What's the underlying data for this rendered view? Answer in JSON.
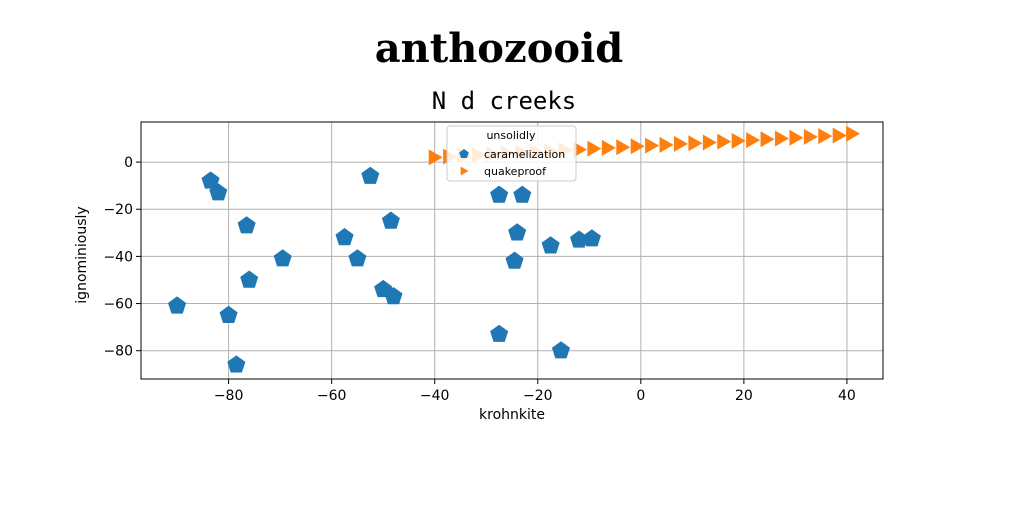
{
  "chart_data": {
    "type": "scatter",
    "suptitle": "anthozooid",
    "title": "N d creeks",
    "xlabel": "krohnkite",
    "ylabel": "ignominiously",
    "xlim": [
      -97,
      47
    ],
    "ylim": [
      -92,
      17
    ],
    "xticks": [
      -80,
      -60,
      -40,
      -20,
      0,
      20,
      40
    ],
    "yticks": [
      0,
      -20,
      -40,
      -60,
      -80
    ],
    "grid": true,
    "legend": {
      "placement": "upper-center",
      "title": "unsolidly",
      "entries": [
        "caramelization",
        "quakeproof"
      ]
    },
    "colors": {
      "caramelization": "#1f77b4",
      "quakeproof": "#ff7f0e"
    },
    "series": [
      {
        "name": "caramelization",
        "marker": "pentagon",
        "points": [
          [
            -90,
            -61
          ],
          [
            -83.5,
            -8
          ],
          [
            -82,
            -13
          ],
          [
            -80,
            -65
          ],
          [
            -78.5,
            -86
          ],
          [
            -76.5,
            -27
          ],
          [
            -76,
            -50
          ],
          [
            -69.5,
            -41
          ],
          [
            -57.5,
            -32
          ],
          [
            -55,
            -41
          ],
          [
            -52.5,
            -6
          ],
          [
            -50,
            -54
          ],
          [
            -48.5,
            -25
          ],
          [
            -48,
            -57
          ],
          [
            -27.5,
            -14
          ],
          [
            -27.5,
            -73
          ],
          [
            -24.5,
            -42
          ],
          [
            -24,
            -30
          ],
          [
            -23,
            -14
          ],
          [
            -17.5,
            -35.5
          ],
          [
            -15.5,
            -80
          ],
          [
            -12,
            -33
          ],
          [
            -9.5,
            -32.5
          ]
        ]
      },
      {
        "name": "quakeproof",
        "marker": "triangle-right",
        "points": [
          [
            -40,
            2
          ],
          [
            -37.2,
            2.3
          ],
          [
            -34.4,
            2.7
          ],
          [
            -31.6,
            3
          ],
          [
            -28.8,
            3.3
          ],
          [
            -26,
            3.7
          ],
          [
            -23.2,
            4
          ],
          [
            -20.4,
            4.3
          ],
          [
            -17.6,
            4.7
          ],
          [
            -14.8,
            5
          ],
          [
            -12,
            5.3
          ],
          [
            -9.2,
            5.7
          ],
          [
            -6.4,
            6
          ],
          [
            -3.6,
            6.3
          ],
          [
            -0.8,
            6.7
          ],
          [
            2,
            7
          ],
          [
            4.8,
            7.3
          ],
          [
            7.6,
            7.7
          ],
          [
            10.4,
            8
          ],
          [
            13.2,
            8.3
          ],
          [
            16,
            8.7
          ],
          [
            18.8,
            9
          ],
          [
            21.6,
            9.3
          ],
          [
            24.4,
            9.7
          ],
          [
            27.2,
            10
          ],
          [
            30,
            10.3
          ],
          [
            32.8,
            10.7
          ],
          [
            35.6,
            11
          ],
          [
            38.4,
            11.3
          ],
          [
            41,
            12
          ]
        ]
      }
    ]
  }
}
